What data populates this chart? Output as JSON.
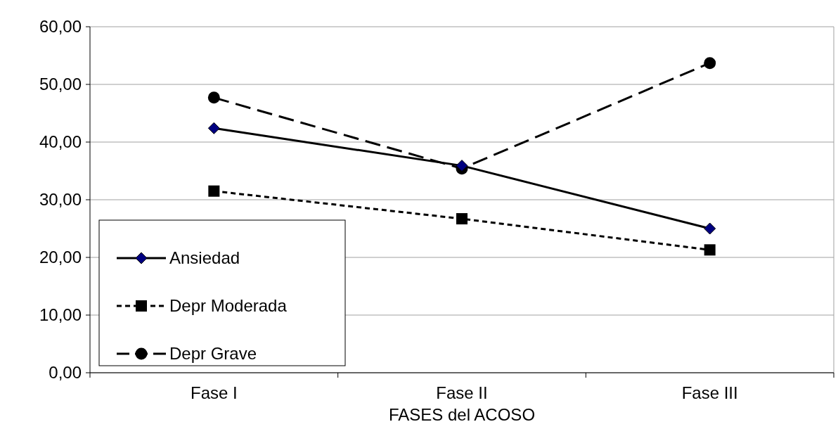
{
  "chart_data": {
    "type": "line",
    "xlabel": "FASES del ACOSO",
    "categories": [
      "Fase I",
      "Fase II",
      "Fase III"
    ],
    "series": [
      {
        "name": "Ansiedad",
        "color": "#000000",
        "values": [
          42.4,
          35.9,
          25.0
        ],
        "marker": "diamond",
        "line_style": "solid"
      },
      {
        "name": "Depr Moderada",
        "color": "#000000",
        "values": [
          31.5,
          26.7,
          21.3
        ],
        "marker": "square",
        "line_style": "dotted"
      },
      {
        "name": "Depr Grave",
        "color": "#000000",
        "values": [
          47.7,
          35.4,
          53.7
        ],
        "marker": "circle",
        "line_style": "dashed"
      }
    ],
    "ylim": [
      0,
      60
    ],
    "yticks": [
      {
        "value": 0,
        "label": "0,00"
      },
      {
        "value": 10,
        "label": "10,00"
      },
      {
        "value": 20,
        "label": "20,00"
      },
      {
        "value": 30,
        "label": "30,00"
      },
      {
        "value": 40,
        "label": "40,00"
      },
      {
        "value": 50,
        "label": "50,00"
      },
      {
        "value": 60,
        "label": "60,00"
      }
    ],
    "grid": "y",
    "legend": "bottom left"
  }
}
